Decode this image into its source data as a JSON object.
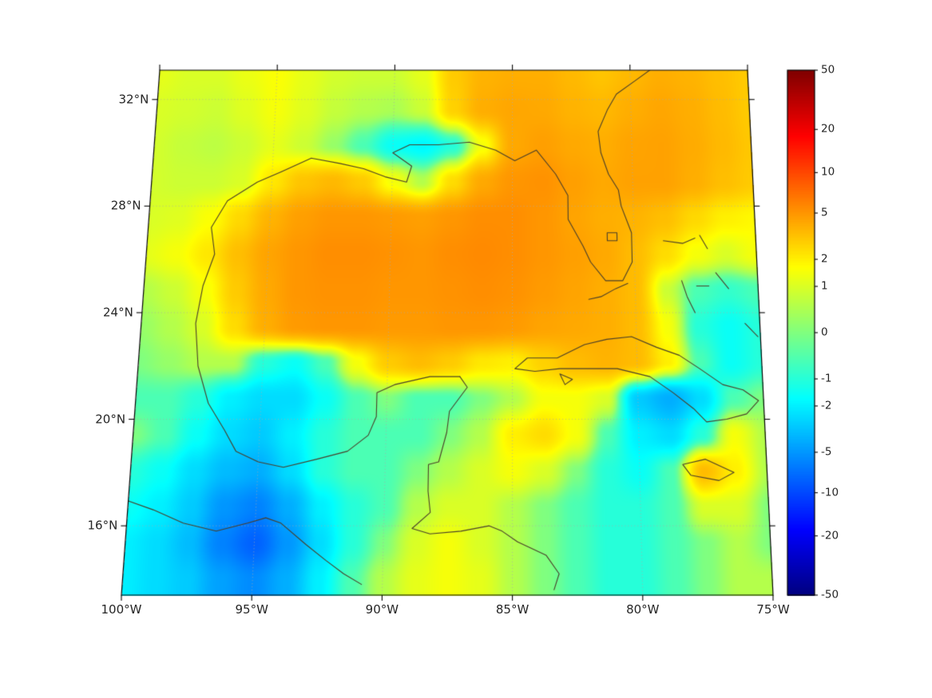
{
  "style": {
    "background": "#ffffff",
    "frame_color": "#000000",
    "gridline_color": "#aaaaaa",
    "coastline_color": "#4a3f2a",
    "tick_label_color": "#262626"
  },
  "chart_data": {
    "type": "heatmap",
    "title": "",
    "projection": "conic-like trapezoid map of Gulf of Mexico / Caribbean region",
    "extent": {
      "lon_min": -100,
      "lon_max": -75,
      "lat_min": 13.4,
      "lat_max": 33.1
    },
    "grid_on": true,
    "lon_ticks": {
      "values": [
        -100,
        -95,
        -90,
        -85,
        -80,
        -75
      ],
      "labels": [
        "100°W",
        "95°W",
        "90°W",
        "85°W",
        "80°W",
        "75°W"
      ]
    },
    "lat_ticks": {
      "values": [
        32,
        28,
        24,
        20,
        16
      ],
      "labels": [
        "32°N",
        "28°N",
        "24°N",
        "20°N",
        "16°N"
      ]
    },
    "colorbar": {
      "position": "right",
      "colormap": "jet",
      "scale": "symlog",
      "vmin": -50,
      "vmax": 50,
      "tick_values": [
        50,
        20,
        10,
        5,
        2,
        1,
        0,
        -1,
        -2,
        -5,
        -10,
        -20,
        -50
      ],
      "tick_labels": [
        "50",
        "20",
        "10",
        "5",
        "2",
        "1",
        "0",
        "-1",
        "-2",
        "-5",
        "-10",
        "-20",
        "-50"
      ]
    },
    "grid": {
      "lons": [
        -100,
        -98.75,
        -97.5,
        -96.25,
        -95,
        -93.75,
        -92.5,
        -91.25,
        -90,
        -88.75,
        -87.5,
        -86.25,
        -85,
        -83.75,
        -82.5,
        -81.25,
        -80,
        -78.75,
        -77.5,
        -76.25,
        -75
      ],
      "lats": [
        33.0,
        31.64,
        30.29,
        28.93,
        27.57,
        26.21,
        24.86,
        23.5,
        22.14,
        20.79,
        19.43,
        18.07,
        16.71,
        15.36,
        14.0
      ],
      "values": [
        [
          1.2,
          1.0,
          1.0,
          1.3,
          1.6,
          1.2,
          0.9,
          0.8,
          0.8,
          1.2,
          3.0,
          3.8,
          4.0,
          4.0,
          3.6,
          3.2,
          3.6,
          4.0,
          3.8,
          3.4,
          3.0
        ],
        [
          1.0,
          0.9,
          0.8,
          1.1,
          1.5,
          1.1,
          0.7,
          0.5,
          0.4,
          0.8,
          2.8,
          4.0,
          4.3,
          4.2,
          3.8,
          3.6,
          4.0,
          4.3,
          4.0,
          3.5,
          3.0
        ],
        [
          0.9,
          0.7,
          0.6,
          0.8,
          1.2,
          0.8,
          0.2,
          -0.5,
          -1.5,
          -1.8,
          -1.0,
          1.5,
          4.2,
          4.6,
          4.2,
          4.0,
          4.4,
          4.5,
          4.1,
          3.6,
          3.1
        ],
        [
          0.9,
          0.8,
          0.8,
          1.0,
          2.2,
          3.2,
          3.6,
          3.0,
          1.5,
          0.5,
          2.5,
          4.2,
          5.0,
          5.2,
          4.6,
          4.2,
          4.5,
          4.5,
          4.0,
          3.4,
          3.0
        ],
        [
          1.0,
          1.1,
          1.6,
          2.6,
          3.8,
          4.6,
          5.0,
          5.0,
          4.8,
          4.6,
          5.0,
          5.4,
          5.4,
          5.0,
          4.4,
          4.0,
          3.8,
          3.4,
          2.6,
          2.0,
          1.8
        ],
        [
          1.2,
          1.5,
          2.2,
          3.4,
          4.4,
          5.0,
          5.4,
          5.4,
          5.2,
          5.0,
          5.4,
          5.6,
          5.4,
          5.0,
          4.6,
          4.2,
          3.5,
          2.5,
          1.5,
          1.0,
          1.5
        ],
        [
          0.5,
          0.8,
          1.5,
          3.0,
          4.2,
          5.0,
          5.2,
          5.2,
          5.0,
          5.0,
          5.2,
          5.4,
          5.2,
          4.8,
          4.4,
          4.0,
          3.5,
          0.8,
          -0.5,
          -0.8,
          -0.5
        ],
        [
          0.2,
          0.5,
          1.0,
          2.5,
          4.0,
          4.8,
          5.0,
          5.0,
          4.8,
          4.8,
          5.0,
          5.0,
          4.8,
          4.4,
          4.2,
          4.0,
          3.5,
          1.5,
          -1.0,
          -1.5,
          -1.0
        ],
        [
          0.0,
          0.2,
          0.5,
          0.5,
          -1.0,
          -1.5,
          -0.5,
          1.5,
          3.0,
          3.5,
          3.0,
          2.2,
          2.0,
          2.8,
          3.5,
          3.8,
          3.5,
          2.0,
          -0.5,
          -1.5,
          -1.0
        ],
        [
          -0.5,
          -0.5,
          -1.0,
          -2.0,
          -2.5,
          -2.5,
          -1.5,
          -0.5,
          0.0,
          -0.5,
          -0.5,
          0.0,
          0.5,
          1.5,
          1.5,
          1.0,
          -3.0,
          -4.0,
          -2.5,
          -0.5,
          0.0
        ],
        [
          0.0,
          -0.5,
          -1.5,
          -2.5,
          -3.0,
          -2.0,
          -1.0,
          -0.5,
          -0.5,
          -0.5,
          0.0,
          0.5,
          2.0,
          2.5,
          1.5,
          -0.5,
          -2.0,
          -2.5,
          -1.0,
          1.5,
          0.5
        ],
        [
          -1.0,
          -1.5,
          -2.5,
          -3.5,
          -4.0,
          -2.5,
          -1.0,
          -0.5,
          -0.5,
          0.0,
          0.5,
          1.0,
          1.5,
          1.0,
          0.0,
          -1.0,
          -1.5,
          -0.5,
          3.5,
          2.0,
          0.5
        ],
        [
          -1.5,
          -2.0,
          -3.0,
          -5.0,
          -6.0,
          -4.0,
          -2.0,
          -1.0,
          -0.5,
          0.5,
          1.0,
          1.0,
          0.5,
          0.0,
          -0.5,
          -1.0,
          -1.0,
          -0.5,
          1.0,
          1.0,
          0.0
        ],
        [
          -2.0,
          -2.5,
          -3.5,
          -6.0,
          -8.0,
          -5.0,
          -2.5,
          -1.0,
          0.0,
          1.0,
          1.5,
          1.0,
          0.5,
          0.0,
          -0.5,
          -1.0,
          -1.0,
          -0.5,
          0.0,
          0.5,
          0.0
        ],
        [
          -2.0,
          -2.5,
          -3.0,
          -4.5,
          -5.5,
          -4.0,
          -2.0,
          -0.5,
          0.5,
          1.2,
          1.5,
          1.2,
          0.5,
          0.0,
          -0.5,
          -1.0,
          -1.0,
          -0.5,
          0.0,
          0.5,
          0.5
        ]
      ]
    },
    "coastlines": [
      {
        "name": "gulf-atlantic-coast",
        "points": [
          [
            -87.1,
            21.6
          ],
          [
            -88.3,
            21.6
          ],
          [
            -89.7,
            21.3
          ],
          [
            -90.4,
            21.0
          ],
          [
            -90.4,
            20.1
          ],
          [
            -90.7,
            19.4
          ],
          [
            -91.5,
            18.8
          ],
          [
            -92.7,
            18.5
          ],
          [
            -94.0,
            18.2
          ],
          [
            -95.0,
            18.4
          ],
          [
            -95.9,
            18.8
          ],
          [
            -96.4,
            19.6
          ],
          [
            -97.1,
            20.6
          ],
          [
            -97.6,
            22.0
          ],
          [
            -97.8,
            23.6
          ],
          [
            -97.6,
            25.0
          ],
          [
            -97.2,
            26.2
          ],
          [
            -97.4,
            27.2
          ],
          [
            -96.8,
            28.2
          ],
          [
            -95.6,
            28.9
          ],
          [
            -94.6,
            29.3
          ],
          [
            -93.4,
            29.8
          ],
          [
            -92.2,
            29.6
          ],
          [
            -91.2,
            29.4
          ],
          [
            -90.3,
            29.1
          ],
          [
            -89.4,
            28.9
          ],
          [
            -89.2,
            29.5
          ],
          [
            -90.0,
            30.0
          ],
          [
            -89.3,
            30.3
          ],
          [
            -88.1,
            30.3
          ],
          [
            -86.8,
            30.4
          ],
          [
            -85.7,
            30.1
          ],
          [
            -84.9,
            29.7
          ],
          [
            -84.0,
            30.1
          ],
          [
            -83.2,
            29.2
          ],
          [
            -82.7,
            28.4
          ],
          [
            -82.7,
            27.5
          ],
          [
            -82.1,
            26.5
          ],
          [
            -81.8,
            25.9
          ],
          [
            -81.2,
            25.2
          ],
          [
            -80.5,
            25.2
          ],
          [
            -80.1,
            25.9
          ],
          [
            -80.1,
            27.0
          ],
          [
            -80.5,
            28.0
          ],
          [
            -80.6,
            28.6
          ],
          [
            -81.0,
            29.2
          ],
          [
            -81.3,
            30.0
          ],
          [
            -81.4,
            30.8
          ],
          [
            -81.0,
            31.6
          ],
          [
            -80.6,
            32.2
          ],
          [
            -79.8,
            32.7
          ],
          [
            -79.0,
            33.2
          ]
        ]
      },
      {
        "name": "pacific-coast",
        "points": [
          [
            -100.2,
            17.0
          ],
          [
            -99.0,
            16.6
          ],
          [
            -97.8,
            16.1
          ],
          [
            -96.5,
            15.8
          ],
          [
            -95.3,
            16.1
          ],
          [
            -94.6,
            16.3
          ],
          [
            -94.0,
            16.1
          ],
          [
            -93.0,
            15.3
          ],
          [
            -92.2,
            14.7
          ],
          [
            -91.5,
            14.2
          ],
          [
            -90.8,
            13.8
          ]
        ]
      },
      {
        "name": "central-america-caribbean-coast",
        "points": [
          [
            -87.1,
            21.6
          ],
          [
            -86.8,
            21.2
          ],
          [
            -87.5,
            20.3
          ],
          [
            -87.6,
            19.5
          ],
          [
            -87.9,
            18.4
          ],
          [
            -88.3,
            18.3
          ],
          [
            -88.3,
            17.3
          ],
          [
            -88.2,
            16.5
          ],
          [
            -88.9,
            15.9
          ],
          [
            -88.2,
            15.7
          ],
          [
            -87.0,
            15.8
          ],
          [
            -85.9,
            16.0
          ],
          [
            -85.4,
            15.8
          ],
          [
            -84.8,
            15.4
          ],
          [
            -83.7,
            14.9
          ],
          [
            -83.2,
            14.2
          ],
          [
            -83.4,
            13.6
          ]
        ]
      },
      {
        "name": "cuba",
        "points": [
          [
            -84.9,
            21.9
          ],
          [
            -84.4,
            22.3
          ],
          [
            -83.2,
            22.3
          ],
          [
            -82.1,
            22.8
          ],
          [
            -81.2,
            23.0
          ],
          [
            -80.2,
            23.1
          ],
          [
            -79.2,
            22.7
          ],
          [
            -78.3,
            22.4
          ],
          [
            -77.5,
            21.9
          ],
          [
            -76.6,
            21.3
          ],
          [
            -75.8,
            21.1
          ],
          [
            -75.2,
            20.7
          ],
          [
            -75.7,
            20.2
          ],
          [
            -76.5,
            20.0
          ],
          [
            -77.3,
            19.9
          ],
          [
            -77.8,
            20.4
          ],
          [
            -78.6,
            21.0
          ],
          [
            -79.5,
            21.6
          ],
          [
            -80.8,
            21.9
          ],
          [
            -82.0,
            21.9
          ],
          [
            -83.1,
            21.9
          ],
          [
            -84.1,
            21.8
          ],
          [
            -84.9,
            21.9
          ]
        ]
      },
      {
        "name": "isle-of-youth",
        "points": [
          [
            -83.1,
            21.7
          ],
          [
            -82.6,
            21.5
          ],
          [
            -82.9,
            21.3
          ],
          [
            -83.1,
            21.7
          ]
        ]
      },
      {
        "name": "jamaica",
        "points": [
          [
            -78.3,
            18.3
          ],
          [
            -77.4,
            18.5
          ],
          [
            -76.3,
            18.0
          ],
          [
            -76.9,
            17.7
          ],
          [
            -78.0,
            17.9
          ],
          [
            -78.3,
            18.3
          ]
        ]
      },
      {
        "name": "florida-keys",
        "points": [
          [
            -80.3,
            25.1
          ],
          [
            -80.8,
            24.9
          ],
          [
            -81.4,
            24.6
          ],
          [
            -81.9,
            24.5
          ]
        ]
      },
      {
        "name": "lake-okeechobee",
        "points": [
          [
            -81.1,
            27.0
          ],
          [
            -80.7,
            27.0
          ],
          [
            -80.7,
            26.7
          ],
          [
            -81.1,
            26.7
          ],
          [
            -81.1,
            27.0
          ]
        ]
      },
      {
        "name": "bahamas-andros",
        "points": [
          [
            -78.1,
            25.2
          ],
          [
            -77.9,
            24.6
          ],
          [
            -77.6,
            24.0
          ]
        ]
      },
      {
        "name": "bahamas-grand-bahama",
        "points": [
          [
            -78.8,
            26.7
          ],
          [
            -78.0,
            26.6
          ],
          [
            -77.5,
            26.8
          ]
        ]
      },
      {
        "name": "bahamas-abaco",
        "points": [
          [
            -77.3,
            26.9
          ],
          [
            -77.0,
            26.4
          ]
        ]
      },
      {
        "name": "bahamas-eleuthera",
        "points": [
          [
            -76.7,
            25.5
          ],
          [
            -76.2,
            24.9
          ]
        ]
      },
      {
        "name": "bahamas-new-providence",
        "points": [
          [
            -77.5,
            25.0
          ],
          [
            -77.0,
            25.0
          ]
        ]
      },
      {
        "name": "bahamas-long-island",
        "points": [
          [
            -75.6,
            23.6
          ],
          [
            -75.1,
            23.1
          ]
        ]
      }
    ]
  }
}
